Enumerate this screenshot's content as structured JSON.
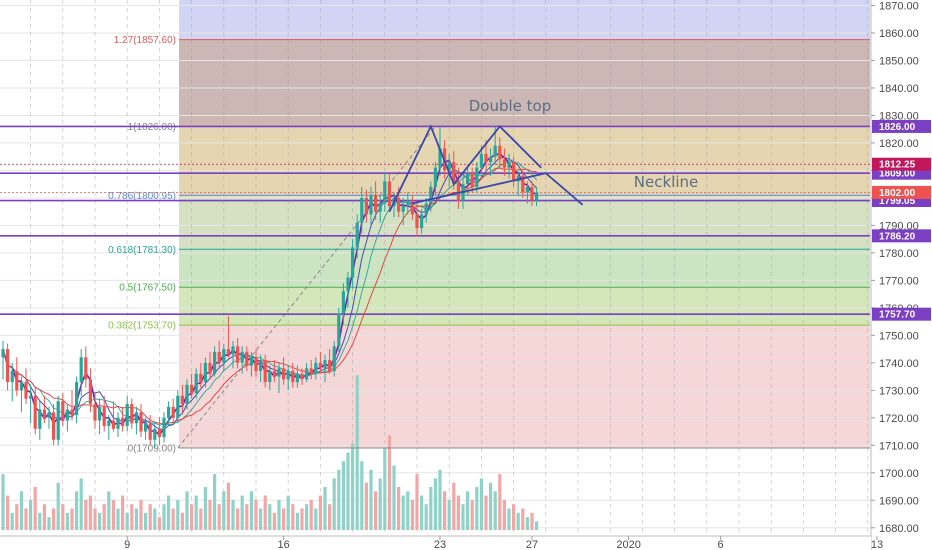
{
  "chart_data": {
    "type": "candlestick",
    "annotations": [
      "Double top",
      "Neckline"
    ],
    "ylim": [
      1677,
      1872
    ],
    "price_ticks": [
      1680,
      1690,
      1700,
      1710,
      1720,
      1730,
      1740,
      1750,
      1760,
      1770,
      1780,
      1790,
      1800,
      1810,
      1820,
      1830,
      1840,
      1850,
      1860,
      1870
    ],
    "x_ticks": [
      {
        "label": "9",
        "bar": 27
      },
      {
        "label": "16",
        "bar": 61
      },
      {
        "label": "23",
        "bar": 95
      },
      {
        "label": "27",
        "bar": 115
      },
      {
        "label": "2020",
        "bar": 136
      },
      {
        "label": "6",
        "bar": 156
      },
      {
        "label": "13",
        "bar": 190
      }
    ],
    "fib_levels": [
      {
        "label": "1.27(1857.60)",
        "price": 1857.6,
        "color": "#e05a5a"
      },
      {
        "label": "1(1826.00)",
        "price": 1826.0,
        "color": "#888888"
      },
      {
        "label": "0.786(1800.95)",
        "price": 1800.95,
        "color": "#5b8fd1"
      },
      {
        "label": "0.618(1781.30)",
        "price": 1781.3,
        "color": "#26a69a"
      },
      {
        "label": "0.5(1767.50)",
        "price": 1767.5,
        "color": "#4caf50"
      },
      {
        "label": "0.382(1753.70)",
        "price": 1753.7,
        "color": "#8bc34a"
      },
      {
        "label": "0(1709.00)",
        "price": 1709.0,
        "color": "#888888"
      }
    ],
    "fib_zones": [
      {
        "from": 1857.6,
        "to": 1872,
        "color": "#c9ccf2"
      },
      {
        "from": 1826.0,
        "to": 1857.6,
        "color": "#c4aaa8"
      },
      {
        "from": 1800.95,
        "to": 1826.0,
        "color": "#e0cfa3"
      },
      {
        "from": 1781.3,
        "to": 1800.95,
        "color": "#cfdcb8"
      },
      {
        "from": 1767.5,
        "to": 1781.3,
        "color": "#c2e0b8"
      },
      {
        "from": 1753.7,
        "to": 1767.5,
        "color": "#cde3ae"
      },
      {
        "from": 1709.0,
        "to": 1753.7,
        "color": "#f4d0d0"
      }
    ],
    "horizontal_levels": [
      {
        "label": "1826.00",
        "price": 1826.0,
        "color": "#7b3fc4"
      },
      {
        "label": "1809.00",
        "price": 1809.0,
        "color": "#7b3fc4"
      },
      {
        "label": "1799.05",
        "price": 1799.05,
        "color": "#7b3fc4"
      },
      {
        "label": "1786.20",
        "price": 1786.2,
        "color": "#7b3fc4"
      },
      {
        "label": "1757.70",
        "price": 1757.7,
        "color": "#7b3fc4"
      }
    ],
    "price_badges": [
      {
        "label": "1812.25",
        "price": 1812.25,
        "color": "#c2185b"
      },
      {
        "label": "1802.00",
        "price": 1802.0,
        "color": "#ef5350"
      }
    ],
    "double_top": [
      {
        "bar": 84,
        "price": 1795
      },
      {
        "bar": 93,
        "price": 1826
      },
      {
        "bar": 98,
        "price": 1805
      },
      {
        "bar": 108,
        "price": 1826
      },
      {
        "bar": 117,
        "price": 1811
      }
    ],
    "neckline": [
      {
        "bar": 89,
        "price": 1798
      },
      {
        "bar": 118,
        "price": 1809
      },
      {
        "bar": 126,
        "price": 1797.5
      }
    ],
    "ohlcv": [
      {
        "o": 1742,
        "h": 1748,
        "l": 1734,
        "c": 1745,
        "v": 13
      },
      {
        "o": 1745,
        "h": 1747,
        "l": 1730,
        "c": 1733,
        "v": 8
      },
      {
        "o": 1733,
        "h": 1740,
        "l": 1726,
        "c": 1737,
        "v": 4
      },
      {
        "o": 1737,
        "h": 1742,
        "l": 1728,
        "c": 1730,
        "v": 6
      },
      {
        "o": 1730,
        "h": 1735,
        "l": 1722,
        "c": 1733,
        "v": 9
      },
      {
        "o": 1733,
        "h": 1738,
        "l": 1725,
        "c": 1727,
        "v": 5
      },
      {
        "o": 1727,
        "h": 1732,
        "l": 1718,
        "c": 1728,
        "v": 7
      },
      {
        "o": 1728,
        "h": 1731,
        "l": 1714,
        "c": 1716,
        "v": 10
      },
      {
        "o": 1716,
        "h": 1726,
        "l": 1712,
        "c": 1723,
        "v": 4
      },
      {
        "o": 1723,
        "h": 1728,
        "l": 1718,
        "c": 1720,
        "v": 6
      },
      {
        "o": 1720,
        "h": 1724,
        "l": 1716,
        "c": 1722,
        "v": 3
      },
      {
        "o": 1722,
        "h": 1725,
        "l": 1710,
        "c": 1712,
        "v": 5
      },
      {
        "o": 1712,
        "h": 1728,
        "l": 1710,
        "c": 1726,
        "v": 11
      },
      {
        "o": 1726,
        "h": 1729,
        "l": 1717,
        "c": 1719,
        "v": 6
      },
      {
        "o": 1719,
        "h": 1725,
        "l": 1715,
        "c": 1723,
        "v": 4
      },
      {
        "o": 1723,
        "h": 1730,
        "l": 1719,
        "c": 1721,
        "v": 5
      },
      {
        "o": 1721,
        "h": 1735,
        "l": 1718,
        "c": 1733,
        "v": 9
      },
      {
        "o": 1733,
        "h": 1745,
        "l": 1728,
        "c": 1742,
        "v": 12
      },
      {
        "o": 1742,
        "h": 1746,
        "l": 1731,
        "c": 1734,
        "v": 7
      },
      {
        "o": 1734,
        "h": 1738,
        "l": 1722,
        "c": 1725,
        "v": 8
      },
      {
        "o": 1725,
        "h": 1729,
        "l": 1716,
        "c": 1719,
        "v": 5
      },
      {
        "o": 1719,
        "h": 1727,
        "l": 1714,
        "c": 1724,
        "v": 4
      },
      {
        "o": 1724,
        "h": 1728,
        "l": 1715,
        "c": 1717,
        "v": 6
      },
      {
        "o": 1717,
        "h": 1721,
        "l": 1712,
        "c": 1719,
        "v": 9
      },
      {
        "o": 1719,
        "h": 1726,
        "l": 1715,
        "c": 1716,
        "v": 7
      },
      {
        "o": 1716,
        "h": 1722,
        "l": 1713,
        "c": 1720,
        "v": 5
      },
      {
        "o": 1720,
        "h": 1724,
        "l": 1715,
        "c": 1717,
        "v": 8
      },
      {
        "o": 1717,
        "h": 1728,
        "l": 1715,
        "c": 1725,
        "v": 4
      },
      {
        "o": 1725,
        "h": 1727,
        "l": 1716,
        "c": 1718,
        "v": 6
      },
      {
        "o": 1718,
        "h": 1724,
        "l": 1714,
        "c": 1722,
        "v": 5
      },
      {
        "o": 1722,
        "h": 1725,
        "l": 1713,
        "c": 1715,
        "v": 7
      },
      {
        "o": 1715,
        "h": 1720,
        "l": 1712,
        "c": 1718,
        "v": 4
      },
      {
        "o": 1718,
        "h": 1721,
        "l": 1710,
        "c": 1712,
        "v": 6
      },
      {
        "o": 1712,
        "h": 1718,
        "l": 1709,
        "c": 1716,
        "v": 5
      },
      {
        "o": 1716,
        "h": 1720,
        "l": 1710,
        "c": 1713,
        "v": 3
      },
      {
        "o": 1713,
        "h": 1722,
        "l": 1711,
        "c": 1720,
        "v": 6
      },
      {
        "o": 1720,
        "h": 1726,
        "l": 1717,
        "c": 1724,
        "v": 8
      },
      {
        "o": 1724,
        "h": 1727,
        "l": 1718,
        "c": 1720,
        "v": 5
      },
      {
        "o": 1720,
        "h": 1730,
        "l": 1718,
        "c": 1728,
        "v": 7
      },
      {
        "o": 1728,
        "h": 1732,
        "l": 1722,
        "c": 1725,
        "v": 4
      },
      {
        "o": 1725,
        "h": 1734,
        "l": 1723,
        "c": 1732,
        "v": 9
      },
      {
        "o": 1732,
        "h": 1736,
        "l": 1727,
        "c": 1729,
        "v": 6
      },
      {
        "o": 1729,
        "h": 1738,
        "l": 1727,
        "c": 1736,
        "v": 8
      },
      {
        "o": 1736,
        "h": 1740,
        "l": 1731,
        "c": 1733,
        "v": 5
      },
      {
        "o": 1733,
        "h": 1742,
        "l": 1731,
        "c": 1740,
        "v": 10
      },
      {
        "o": 1740,
        "h": 1744,
        "l": 1734,
        "c": 1736,
        "v": 7
      },
      {
        "o": 1736,
        "h": 1746,
        "l": 1735,
        "c": 1744,
        "v": 13
      },
      {
        "o": 1744,
        "h": 1748,
        "l": 1738,
        "c": 1740,
        "v": 6
      },
      {
        "o": 1740,
        "h": 1747,
        "l": 1737,
        "c": 1745,
        "v": 9
      },
      {
        "o": 1745,
        "h": 1757,
        "l": 1742,
        "c": 1743,
        "v": 11
      },
      {
        "o": 1743,
        "h": 1748,
        "l": 1738,
        "c": 1746,
        "v": 7
      },
      {
        "o": 1746,
        "h": 1749,
        "l": 1738,
        "c": 1740,
        "v": 5
      },
      {
        "o": 1740,
        "h": 1746,
        "l": 1736,
        "c": 1744,
        "v": 8
      },
      {
        "o": 1744,
        "h": 1746,
        "l": 1737,
        "c": 1739,
        "v": 6
      },
      {
        "o": 1739,
        "h": 1744,
        "l": 1735,
        "c": 1742,
        "v": 9
      },
      {
        "o": 1742,
        "h": 1745,
        "l": 1735,
        "c": 1737,
        "v": 7
      },
      {
        "o": 1737,
        "h": 1743,
        "l": 1733,
        "c": 1741,
        "v": 5
      },
      {
        "o": 1741,
        "h": 1743,
        "l": 1731,
        "c": 1733,
        "v": 8
      },
      {
        "o": 1733,
        "h": 1739,
        "l": 1730,
        "c": 1737,
        "v": 6
      },
      {
        "o": 1737,
        "h": 1741,
        "l": 1733,
        "c": 1735,
        "v": 4
      },
      {
        "o": 1735,
        "h": 1740,
        "l": 1729,
        "c": 1738,
        "v": 7
      },
      {
        "o": 1738,
        "h": 1742,
        "l": 1732,
        "c": 1734,
        "v": 5
      },
      {
        "o": 1734,
        "h": 1739,
        "l": 1730,
        "c": 1737,
        "v": 8
      },
      {
        "o": 1737,
        "h": 1740,
        "l": 1731,
        "c": 1733,
        "v": 6
      },
      {
        "o": 1733,
        "h": 1739,
        "l": 1731,
        "c": 1736,
        "v": 4
      },
      {
        "o": 1736,
        "h": 1738,
        "l": 1732,
        "c": 1734,
        "v": 5
      },
      {
        "o": 1734,
        "h": 1740,
        "l": 1733,
        "c": 1738,
        "v": 6
      },
      {
        "o": 1738,
        "h": 1741,
        "l": 1734,
        "c": 1736,
        "v": 7
      },
      {
        "o": 1736,
        "h": 1742,
        "l": 1734,
        "c": 1740,
        "v": 5
      },
      {
        "o": 1740,
        "h": 1744,
        "l": 1736,
        "c": 1738,
        "v": 8
      },
      {
        "o": 1738,
        "h": 1743,
        "l": 1733,
        "c": 1741,
        "v": 10
      },
      {
        "o": 1741,
        "h": 1745,
        "l": 1736,
        "c": 1737,
        "v": 6
      },
      {
        "o": 1737,
        "h": 1748,
        "l": 1735,
        "c": 1746,
        "v": 12
      },
      {
        "o": 1746,
        "h": 1760,
        "l": 1744,
        "c": 1758,
        "v": 14
      },
      {
        "o": 1758,
        "h": 1769,
        "l": 1754,
        "c": 1766,
        "v": 16
      },
      {
        "o": 1766,
        "h": 1773,
        "l": 1760,
        "c": 1771,
        "v": 18
      },
      {
        "o": 1771,
        "h": 1785,
        "l": 1767,
        "c": 1782,
        "v": 20
      },
      {
        "o": 1782,
        "h": 1794,
        "l": 1778,
        "c": 1791,
        "v": 36
      },
      {
        "o": 1791,
        "h": 1804,
        "l": 1787,
        "c": 1800,
        "v": 16
      },
      {
        "o": 1800,
        "h": 1803,
        "l": 1791,
        "c": 1794,
        "v": 11
      },
      {
        "o": 1794,
        "h": 1804,
        "l": 1790,
        "c": 1801,
        "v": 14
      },
      {
        "o": 1801,
        "h": 1806,
        "l": 1792,
        "c": 1795,
        "v": 9
      },
      {
        "o": 1795,
        "h": 1801,
        "l": 1791,
        "c": 1798,
        "v": 12
      },
      {
        "o": 1798,
        "h": 1809,
        "l": 1795,
        "c": 1806,
        "v": 19
      },
      {
        "o": 1806,
        "h": 1809,
        "l": 1795,
        "c": 1797,
        "v": 22
      },
      {
        "o": 1797,
        "h": 1802,
        "l": 1793,
        "c": 1800,
        "v": 15
      },
      {
        "o": 1800,
        "h": 1804,
        "l": 1793,
        "c": 1795,
        "v": 10
      },
      {
        "o": 1795,
        "h": 1800,
        "l": 1790,
        "c": 1797,
        "v": 8
      },
      {
        "o": 1797,
        "h": 1802,
        "l": 1794,
        "c": 1799,
        "v": 9
      },
      {
        "o": 1799,
        "h": 1801,
        "l": 1792,
        "c": 1794,
        "v": 7
      },
      {
        "o": 1794,
        "h": 1799,
        "l": 1786,
        "c": 1789,
        "v": 13
      },
      {
        "o": 1789,
        "h": 1796,
        "l": 1787,
        "c": 1794,
        "v": 8
      },
      {
        "o": 1794,
        "h": 1800,
        "l": 1791,
        "c": 1798,
        "v": 6
      },
      {
        "o": 1798,
        "h": 1806,
        "l": 1795,
        "c": 1804,
        "v": 10
      },
      {
        "o": 1804,
        "h": 1813,
        "l": 1801,
        "c": 1811,
        "v": 12
      },
      {
        "o": 1811,
        "h": 1826,
        "l": 1808,
        "c": 1818,
        "v": 14
      },
      {
        "o": 1818,
        "h": 1821,
        "l": 1807,
        "c": 1810,
        "v": 9
      },
      {
        "o": 1810,
        "h": 1816,
        "l": 1804,
        "c": 1813,
        "v": 7
      },
      {
        "o": 1813,
        "h": 1817,
        "l": 1803,
        "c": 1806,
        "v": 11
      },
      {
        "o": 1806,
        "h": 1811,
        "l": 1796,
        "c": 1799,
        "v": 8
      },
      {
        "o": 1799,
        "h": 1808,
        "l": 1796,
        "c": 1805,
        "v": 6
      },
      {
        "o": 1805,
        "h": 1812,
        "l": 1801,
        "c": 1809,
        "v": 9
      },
      {
        "o": 1809,
        "h": 1811,
        "l": 1802,
        "c": 1804,
        "v": 7
      },
      {
        "o": 1804,
        "h": 1813,
        "l": 1802,
        "c": 1811,
        "v": 10
      },
      {
        "o": 1811,
        "h": 1819,
        "l": 1807,
        "c": 1816,
        "v": 12
      },
      {
        "o": 1816,
        "h": 1821,
        "l": 1810,
        "c": 1813,
        "v": 8
      },
      {
        "o": 1813,
        "h": 1818,
        "l": 1808,
        "c": 1815,
        "v": 11
      },
      {
        "o": 1815,
        "h": 1826,
        "l": 1812,
        "c": 1819,
        "v": 9
      },
      {
        "o": 1819,
        "h": 1822,
        "l": 1811,
        "c": 1814,
        "v": 13
      },
      {
        "o": 1814,
        "h": 1818,
        "l": 1808,
        "c": 1811,
        "v": 7
      },
      {
        "o": 1811,
        "h": 1816,
        "l": 1807,
        "c": 1813,
        "v": 5
      },
      {
        "o": 1813,
        "h": 1815,
        "l": 1804,
        "c": 1806,
        "v": 6
      },
      {
        "o": 1806,
        "h": 1810,
        "l": 1801,
        "c": 1808,
        "v": 4
      },
      {
        "o": 1808,
        "h": 1810,
        "l": 1800,
        "c": 1802,
        "v": 5
      },
      {
        "o": 1802,
        "h": 1806,
        "l": 1798,
        "c": 1804,
        "v": 3
      },
      {
        "o": 1804,
        "h": 1806,
        "l": 1797,
        "c": 1799,
        "v": 4
      },
      {
        "o": 1799,
        "h": 1804,
        "l": 1797,
        "c": 1802,
        "v": 2
      }
    ]
  }
}
